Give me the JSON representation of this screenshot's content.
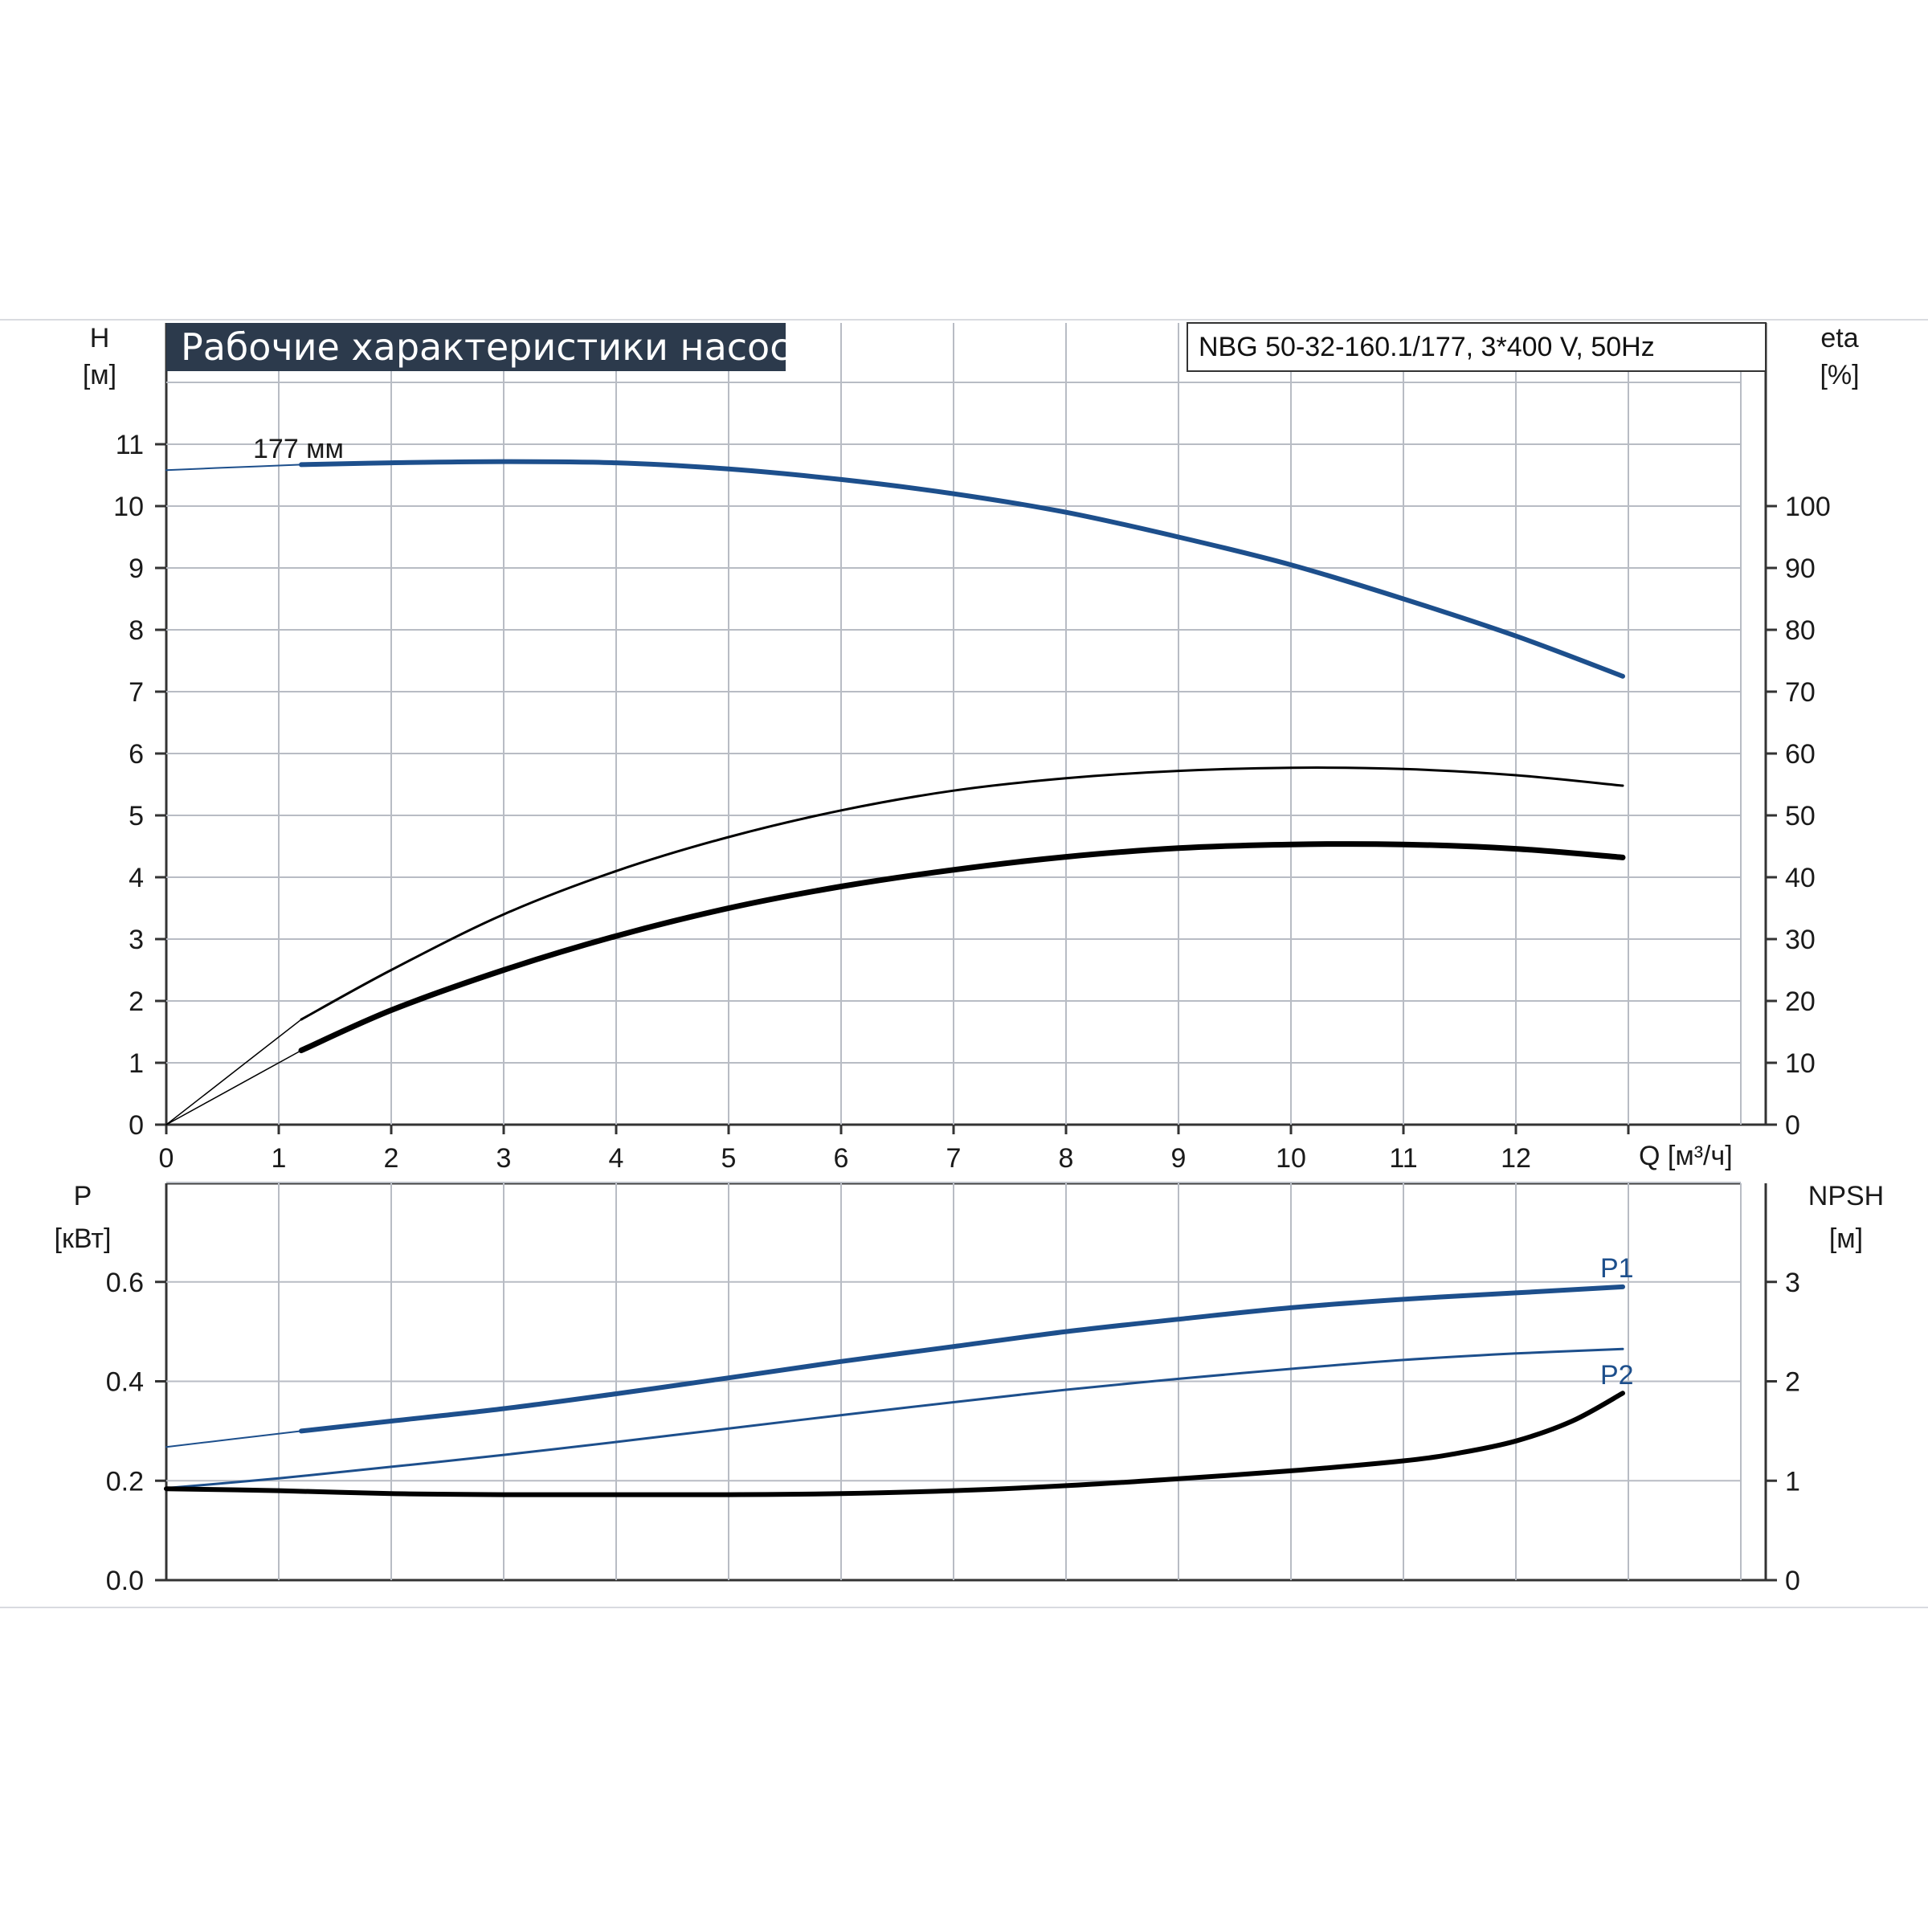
{
  "title": "Рабочие характеристики насоса",
  "model": "NBG 50-32-160.1/177, 3*400 V, 50Hz",
  "colors": {
    "title_bg": "#2c3a4c",
    "blue": "#1d4f8c",
    "black": "#000000",
    "grid": "#b8bcc4",
    "axis": "#333333"
  },
  "chart_data": [
    {
      "type": "line",
      "name": "upper",
      "xlabel": "Q [м³/ч]",
      "ylabel_left": {
        "name": "H",
        "unit": "[м]"
      },
      "ylabel_right": {
        "name": "eta",
        "unit": "[%]"
      },
      "x_ticks": [
        "0",
        "1",
        "2",
        "3",
        "4",
        "5",
        "6",
        "7",
        "8",
        "9",
        "10",
        "11",
        "12"
      ],
      "y_left_ticks": [
        "0",
        "1",
        "2",
        "3",
        "4",
        "5",
        "6",
        "7",
        "8",
        "9",
        "10",
        "11"
      ],
      "y_right_ticks": [
        "0",
        "10",
        "20",
        "30",
        "40",
        "50",
        "60",
        "70",
        "80",
        "90",
        "100"
      ],
      "xlim": [
        0,
        14
      ],
      "ylim_left": [
        0,
        12
      ],
      "ylim_right": [
        0,
        120
      ],
      "grid": true,
      "annotations": [
        {
          "text": "177 мм",
          "x": 1.25,
          "y": 10.9
        }
      ],
      "series": [
        {
          "key": "head",
          "axis": "left",
          "color": "#1d4f8c",
          "x": [
            1.2,
            2,
            3,
            4,
            5,
            6,
            7,
            8,
            9,
            10,
            11,
            12,
            12.95
          ],
          "y": [
            10.67,
            10.7,
            10.72,
            10.7,
            10.6,
            10.43,
            10.2,
            9.9,
            9.5,
            9.05,
            8.5,
            7.9,
            7.25
          ]
        },
        {
          "key": "head_extrapolated",
          "axis": "left",
          "color": "#1d4f8c",
          "x": [
            0,
            0.5,
            1.2
          ],
          "y": [
            10.58,
            10.62,
            10.67
          ]
        },
        {
          "key": "eta_upper",
          "axis": "right",
          "color": "#000000",
          "x": [
            1.2,
            2,
            3,
            4,
            5,
            6,
            7,
            8,
            9,
            10,
            11,
            12,
            12.95
          ],
          "y": [
            17,
            25,
            34,
            41,
            46.5,
            50.8,
            54,
            56,
            57.2,
            57.7,
            57.5,
            56.5,
            54.8
          ]
        },
        {
          "key": "eta_upper_extrapolated",
          "axis": "right",
          "color": "#000000",
          "x": [
            0,
            0.6,
            1.2
          ],
          "y": [
            0,
            8.5,
            17
          ]
        },
        {
          "key": "eta_lower",
          "axis": "right",
          "color": "#000000",
          "x": [
            1.2,
            2,
            3,
            4,
            5,
            6,
            7,
            8,
            9,
            10,
            11,
            12,
            12.95
          ],
          "y": [
            12,
            18.5,
            25,
            30.5,
            35,
            38.5,
            41.2,
            43.3,
            44.7,
            45.3,
            45.3,
            44.6,
            43.2
          ]
        },
        {
          "key": "eta_lower_extrapolated",
          "axis": "right",
          "color": "#000000",
          "x": [
            0,
            0.6,
            1.2
          ],
          "y": [
            0,
            6,
            12
          ]
        }
      ]
    },
    {
      "type": "line",
      "name": "lower",
      "ylabel_left": {
        "name": "P",
        "unit": "[кВт]"
      },
      "ylabel_right": {
        "name": "NPSH",
        "unit": "[м]"
      },
      "y_left_ticks": [
        "0.0",
        "0.2",
        "0.4",
        "0.6"
      ],
      "y_right_ticks": [
        "0",
        "1",
        "2",
        "3"
      ],
      "xlim": [
        0,
        14
      ],
      "ylim_left": [
        0,
        0.8
      ],
      "ylim_right": [
        0,
        4
      ],
      "grid": true,
      "series": [
        {
          "key": "P1",
          "name": "P1",
          "axis": "left",
          "color": "#1d4f8c",
          "x": [
            1.2,
            2,
            3,
            4,
            5,
            6,
            7,
            8,
            9,
            10,
            11,
            12,
            12.95
          ],
          "y": [
            0.3,
            0.32,
            0.345,
            0.375,
            0.407,
            0.44,
            0.47,
            0.5,
            0.525,
            0.548,
            0.565,
            0.578,
            0.59
          ]
        },
        {
          "key": "P1_extrapolated",
          "axis": "left",
          "color": "#1d4f8c",
          "x": [
            0,
            0.6,
            1.2
          ],
          "y": [
            0.268,
            0.284,
            0.3
          ]
        },
        {
          "key": "P2",
          "name": "P2",
          "axis": "left",
          "color": "#1d4f8c",
          "x": [
            0,
            1,
            2,
            3,
            4,
            5,
            6,
            7,
            8,
            9,
            10,
            11,
            12,
            12.95
          ],
          "y": [
            0.185,
            0.205,
            0.228,
            0.252,
            0.278,
            0.305,
            0.332,
            0.358,
            0.383,
            0.405,
            0.425,
            0.443,
            0.456,
            0.465
          ]
        },
        {
          "key": "NPSH",
          "axis": "right",
          "color": "#000000",
          "x": [
            0,
            1,
            2,
            3,
            4,
            5,
            6,
            7,
            8,
            9,
            10,
            11,
            11.5,
            12,
            12.5,
            12.95
          ],
          "y": [
            0.92,
            0.9,
            0.87,
            0.86,
            0.86,
            0.86,
            0.87,
            0.9,
            0.95,
            1.02,
            1.1,
            1.2,
            1.28,
            1.4,
            1.6,
            1.88
          ]
        }
      ]
    }
  ]
}
